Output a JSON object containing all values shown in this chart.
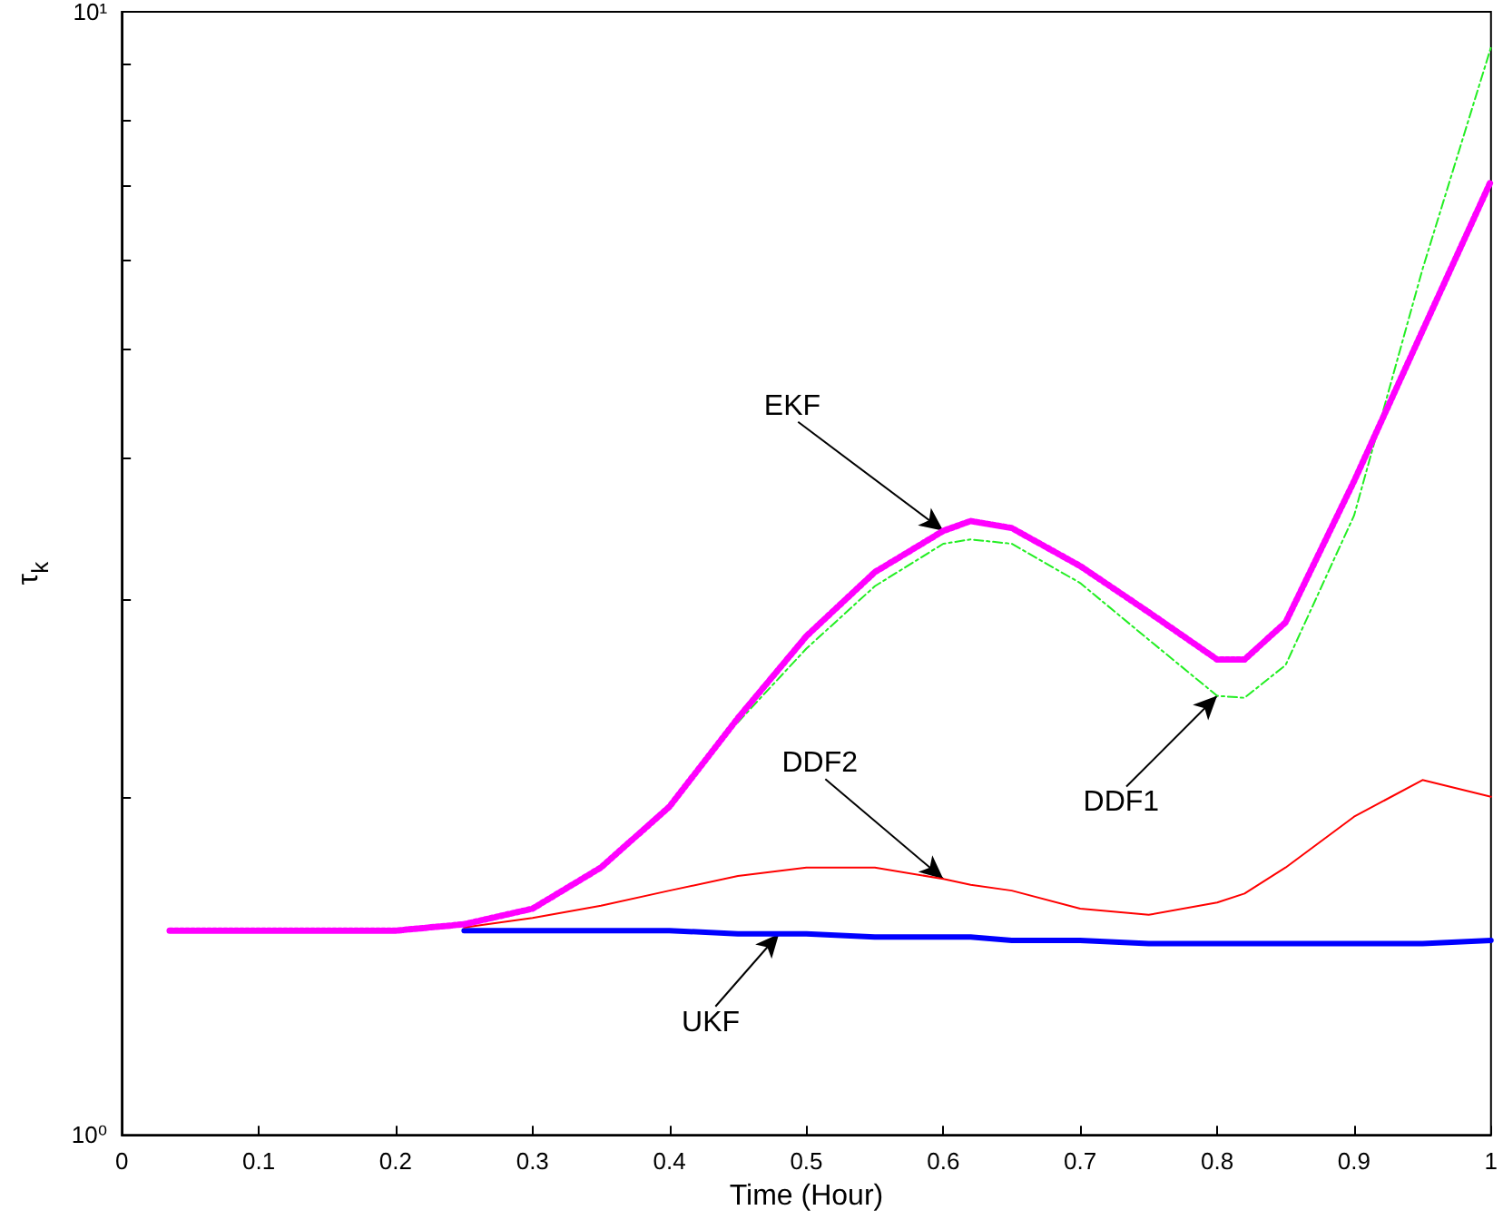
{
  "chart_data": {
    "type": "line",
    "xlabel": "Time (Hour)",
    "ylabel": "τ$_{k}$",
    "log": "y",
    "x": [
      0.035,
      0.1,
      0.2,
      0.25,
      0.3,
      0.35,
      0.4,
      0.45,
      0.5,
      0.55,
      0.6,
      0.62,
      0.65,
      0.7,
      0.75,
      0.8,
      0.82,
      0.85,
      0.9,
      0.95,
      1.0
    ],
    "series": [
      {
        "color": "#ff00ff",
        "line_style": "dotted",
        "values": [
          1.52,
          1.52,
          1.52,
          1.54,
          1.59,
          1.73,
          1.96,
          2.35,
          2.78,
          3.17,
          3.45,
          3.52,
          3.47,
          3.21,
          2.92,
          2.65,
          2.65,
          2.86,
          3.82,
          5.2,
          7.07
        ]
      },
      {
        "color": "#22ee22",
        "line_style": "dashed",
        "values": [
          null,
          null,
          null,
          null,
          null,
          null,
          null,
          2.33,
          2.71,
          3.08,
          3.36,
          3.39,
          3.36,
          3.1,
          2.76,
          2.46,
          2.45,
          2.62,
          3.56,
          5.9,
          9.3
        ]
      },
      {
        "color": "#ff0000",
        "line_style": "solid",
        "values": [
          null,
          null,
          null,
          1.53,
          1.56,
          1.6,
          1.65,
          1.7,
          1.73,
          1.73,
          1.69,
          1.67,
          1.65,
          1.59,
          1.57,
          1.61,
          1.64,
          1.73,
          1.92,
          2.07,
          2.0
        ]
      },
      {
        "color": "#0000ff",
        "line_style": "solid",
        "values": [
          null,
          null,
          null,
          1.52,
          1.52,
          1.52,
          1.52,
          1.51,
          1.51,
          1.5,
          1.5,
          1.5,
          1.49,
          1.49,
          1.48,
          1.48,
          1.48,
          1.48,
          1.48,
          1.48,
          1.49
        ]
      }
    ],
    "xlim": [
      0,
      1
    ],
    "xticks": [
      0,
      0.1,
      0.2,
      0.3,
      0.4,
      0.5,
      0.6,
      0.7,
      0.8,
      0.9,
      1
    ],
    "ylim": [
      1,
      10
    ],
    "yticks": [
      {
        "value": 1,
        "label": "10⁰"
      },
      {
        "value": 2,
        "label": null
      },
      {
        "value": 3,
        "label": null
      },
      {
        "value": 4,
        "label": null
      },
      {
        "value": 5,
        "label": null
      },
      {
        "value": 6,
        "label": null
      },
      {
        "value": 7,
        "label": null
      },
      {
        "value": 8,
        "label": null
      },
      {
        "value": 9,
        "label": null
      },
      {
        "value": 10,
        "label": "10¹"
      }
    ],
    "annotations": [
      {
        "text": "EKF",
        "x": 0.6,
        "y": 3.45
      },
      {
        "text": "DDF2",
        "x": 0.6,
        "y": 1.69
      },
      {
        "text": "DDF1",
        "x": 0.8,
        "y": 2.46
      },
      {
        "text": "UKF",
        "x": 0.48,
        "y": 1.51
      }
    ],
    "grid": false,
    "marker": "none"
  }
}
